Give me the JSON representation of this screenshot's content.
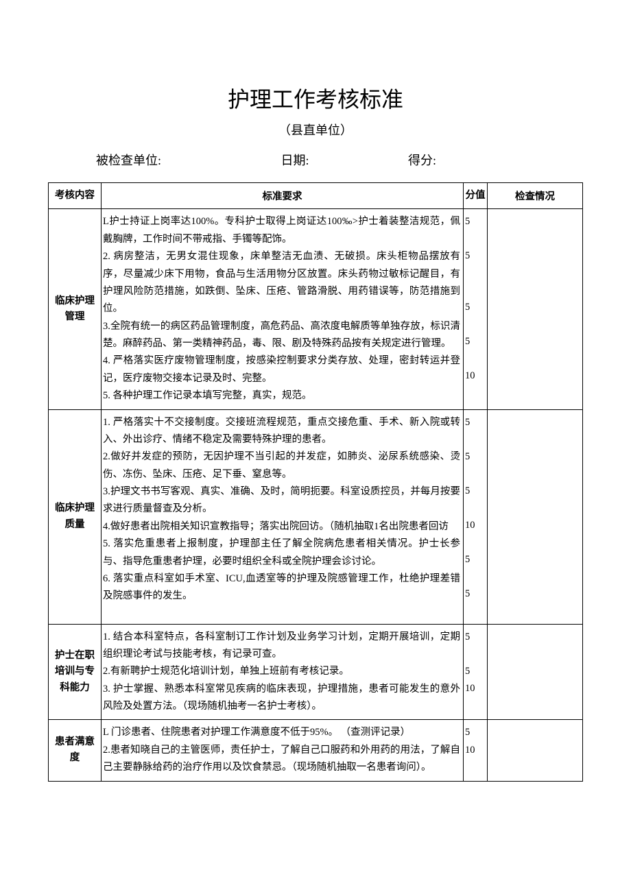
{
  "title": "护理工作考核标准",
  "subtitle": "（县直单位）",
  "meta": {
    "unit_label": "被检查单位:",
    "date_label": "日期:",
    "score_label": "得分:"
  },
  "table": {
    "headers": {
      "category": "考核内容",
      "requirement": "标准要求",
      "score": "分值",
      "check": "检查情况"
    },
    "sections": [
      {
        "category": "临床护理管理",
        "items": [
          {
            "text": "L护士持证上岗率达100%。专科护士取得上岗证达100‰>护士着装整洁规范，佩戴胸牌，工作时间不带戒指、手镯等配饰。",
            "score": "5"
          },
          {
            "text": "2. 病房整洁，无男女混住现象，床单整洁无血渍、无破损。床头柜物品摆放有序，尽量减少床下用物，食品与生活用物分区放置。床头药物过敏标记醒目，有护理风险防范措施，如跌倒、坠床、压疮、管路滑脱、用药错误等，防范措施到位。",
            "score": "5"
          },
          {
            "text": "3.全院有统一的病区药品管理制度，高危药品、高浓度电解质等单独存放，标识清楚。麻醉药品、第一类精神药品，毒、限、剧及特殊药品按有关规定进行管理。",
            "score": "5"
          },
          {
            "text": "4. 严格落实医疗废物管理制度，按感染控制要求分类存放、处理，密封转运并登记，医疗废物交接本记录及时、完整。",
            "score": "5"
          },
          {
            "text": "5. 各种护理工作记录本填写完整，真实，规范。",
            "score": "10"
          }
        ]
      },
      {
        "category": "临床护理质量",
        "items": [
          {
            "text": "1. 严格落实十不交接制度。交接班流程规范，重点交接危重、手术、新入院或转入、外出诊疗、情绪不稳定及需要特殊护理的患者。",
            "score": "5"
          },
          {
            "text": "2.做好并发症的预防，无因护理不当引起的并发症，如肺炎、泌尿系统感染、烫伤、冻伤、坠床、压疮、足下垂、窒息等。",
            "score": "5"
          },
          {
            "text": "3.护理文书书写客观、真实、准确、及时，简明扼要。科室设质控员，并每月按要求进行质量督查及分析。",
            "score": "5"
          },
          {
            "text": "4.做好患者出院相关知识宣教指导；落实出院回访。（随机抽取1名出院患者回访",
            "score": "10"
          },
          {
            "text": "5. 落实危重患者上报制度，护理部主任了解全院病危患者相关情况。护士长参与、指导危重患者护理，必要时组织全科或全院护理会诊讨论。",
            "score": "5"
          },
          {
            "text": "6. 落实重点科室如手术室、ICU,血透室等的护理及院感管理工作，杜绝护理差错及院感事件的发生。",
            "score": "5"
          }
        ]
      },
      {
        "category": "护士在职培训与专科能力",
        "items": [
          {
            "text": "1. 结合本科室特点，各科室制订工作计划及业务学习计划，定期开展培训，定期组织理论考试与技能考核，有记录可查。",
            "score": "5"
          },
          {
            "text": "2.有新聘护士规范化培训计划，单独上班前有考核记录。",
            "score": "5"
          },
          {
            "text": "3. 护士掌握、熟悉本科室常见疾病的临床表现，护理措施，患者可能发生的意外风险及处置方法。（现场随机抽考一名护士考核）。",
            "score": "10"
          }
        ]
      },
      {
        "category": "患者满意度",
        "items": [
          {
            "text": "L 门诊患者、住院患者对护理工作满意度不低于95%。 （查测评记录）",
            "score": "5"
          },
          {
            "text": "2.患者知晓自己的主管医师，责任护士，了解自己口服药和外用药的用法，了解自己主要静脉给药的治疗作用以及饮食禁忌。（现场随机抽取一名患者询问）。",
            "score": "10"
          }
        ]
      }
    ]
  }
}
